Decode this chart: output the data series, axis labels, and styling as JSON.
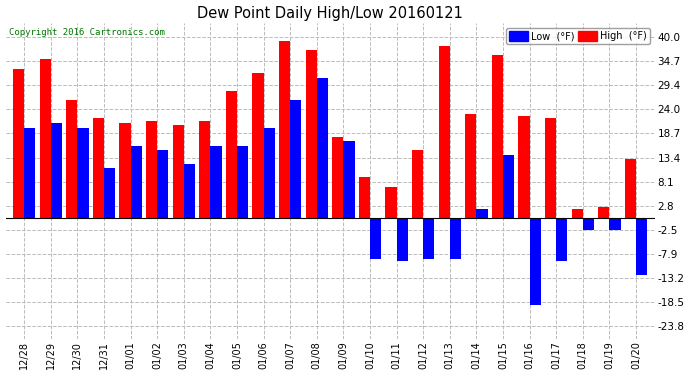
{
  "title": "Dew Point Daily High/Low 20160121",
  "copyright": "Copyright 2016 Cartronics.com",
  "labels": [
    "12/28",
    "12/29",
    "12/30",
    "12/31",
    "01/01",
    "01/02",
    "01/03",
    "01/04",
    "01/05",
    "01/06",
    "01/07",
    "01/08",
    "01/09",
    "01/10",
    "01/11",
    "01/12",
    "01/13",
    "01/14",
    "01/15",
    "01/16",
    "01/17",
    "01/18",
    "01/19",
    "01/20"
  ],
  "high": [
    33.0,
    35.0,
    26.0,
    22.0,
    21.0,
    21.5,
    20.5,
    21.5,
    28.0,
    32.0,
    39.0,
    37.0,
    18.0,
    9.0,
    7.0,
    15.0,
    38.0,
    23.0,
    36.0,
    22.5,
    22.0,
    2.0,
    2.5,
    13.0
  ],
  "low": [
    20.0,
    21.0,
    20.0,
    11.0,
    16.0,
    15.0,
    12.0,
    16.0,
    16.0,
    20.0,
    26.0,
    31.0,
    17.0,
    -9.0,
    -9.5,
    -9.0,
    -9.0,
    2.0,
    14.0,
    -19.0,
    -9.5,
    -2.5,
    -2.5,
    -12.5
  ],
  "high_color": "#FF0000",
  "low_color": "#0000FF",
  "bg_color": "#FFFFFF",
  "grid_color": "#BBBBBB",
  "yticks": [
    -23.8,
    -18.5,
    -13.2,
    -7.9,
    -2.5,
    2.8,
    8.1,
    13.4,
    18.7,
    24.0,
    29.4,
    34.7,
    40.0
  ],
  "ylim": [
    -26.5,
    43.0
  ],
  "bar_width": 0.42,
  "figsize": [
    6.9,
    3.75
  ],
  "dpi": 100
}
